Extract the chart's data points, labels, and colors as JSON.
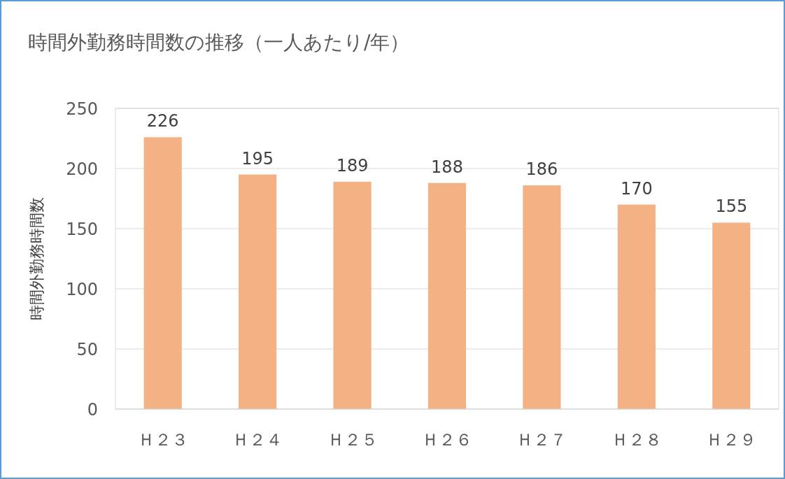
{
  "chart_data": {
    "type": "bar",
    "title": "時間外勤務時間数の推移（一人あたり/年）",
    "ylabel": "時間外勤務時間数",
    "categories": [
      "Ｈ２３",
      "Ｈ２４",
      "Ｈ２５",
      "Ｈ２６",
      "Ｈ２７",
      "Ｈ２８",
      "Ｈ２９"
    ],
    "values": [
      226,
      195,
      189,
      188,
      186,
      170,
      155
    ],
    "color": "#f4b183",
    "ylim": [
      0,
      250
    ],
    "yticks": [
      0,
      50,
      100,
      150,
      200,
      250
    ],
    "grid": "y",
    "data_labels": true
  }
}
